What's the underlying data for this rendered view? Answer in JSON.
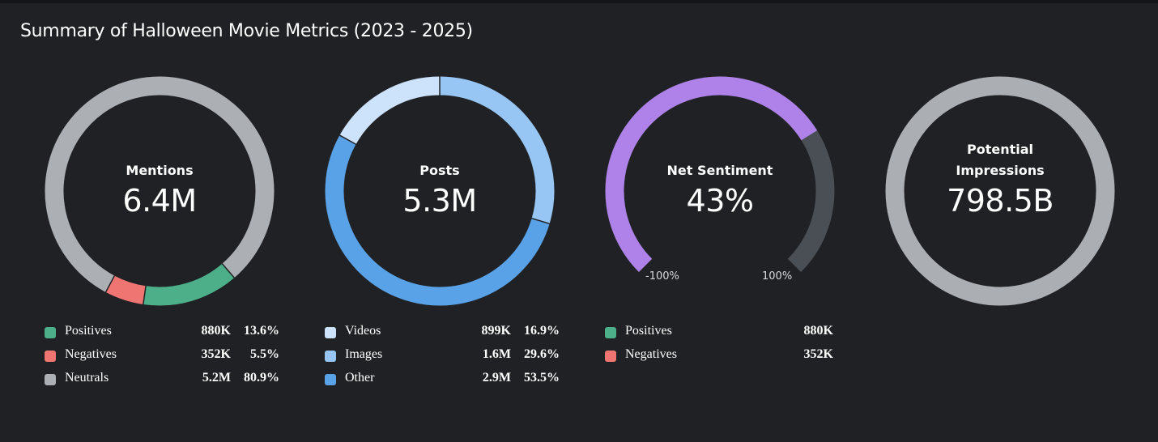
{
  "title": "Summary of Halloween Movie Metrics (2023 - 2025)",
  "colors": {
    "background": "#1f2124",
    "positive": "#4caf8a",
    "negative": "#ef7573",
    "neutral": "#acafb3",
    "videos": "#cde3fb",
    "images": "#97c6f4",
    "other": "#5aa2e8",
    "sentiment_fill": "#ae82e8",
    "sentiment_track": "#4a4f55",
    "impressions": "#abaeb2"
  },
  "chart_data": [
    {
      "type": "pie",
      "name": "mentions",
      "center_label": "Mentions",
      "center_value": "6.4M",
      "series": [
        {
          "label": "Positives",
          "count": "880K",
          "pct_label": "13.6%",
          "value": 13.6,
          "color": "#4caf8a"
        },
        {
          "label": "Negatives",
          "count": "352K",
          "pct_label": "5.5%",
          "value": 5.5,
          "color": "#ef7573"
        },
        {
          "label": "Neutrals",
          "count": "5.2M",
          "pct_label": "80.9%",
          "value": 80.9,
          "color": "#acafb3"
        }
      ]
    },
    {
      "type": "pie",
      "name": "posts",
      "center_label": "Posts",
      "center_value": "5.3M",
      "series": [
        {
          "label": "Videos",
          "count": "899K",
          "pct_label": "16.9%",
          "value": 16.9,
          "color": "#cde3fb"
        },
        {
          "label": "Images",
          "count": "1.6M",
          "pct_label": "29.6%",
          "value": 29.6,
          "color": "#97c6f4"
        },
        {
          "label": "Other",
          "count": "2.9M",
          "pct_label": "53.5%",
          "value": 53.5,
          "color": "#5aa2e8"
        }
      ]
    },
    {
      "type": "gauge",
      "name": "net-sentiment",
      "center_label": "Net Sentiment",
      "center_value": "43%",
      "value": 43,
      "range": [
        -100,
        100
      ],
      "min_label": "-100%",
      "max_label": "100%",
      "series": [
        {
          "label": "Positives",
          "count": "880K",
          "color": "#4caf8a"
        },
        {
          "label": "Negatives",
          "count": "352K",
          "color": "#ef7573"
        }
      ]
    },
    {
      "type": "pie",
      "name": "potential-impressions",
      "center_label_line1": "Potential",
      "center_label_line2": "Impressions",
      "center_value": "798.5B",
      "series": [
        {
          "label": "Potential Impressions",
          "value": 100,
          "color": "#abaeb2"
        }
      ]
    }
  ]
}
